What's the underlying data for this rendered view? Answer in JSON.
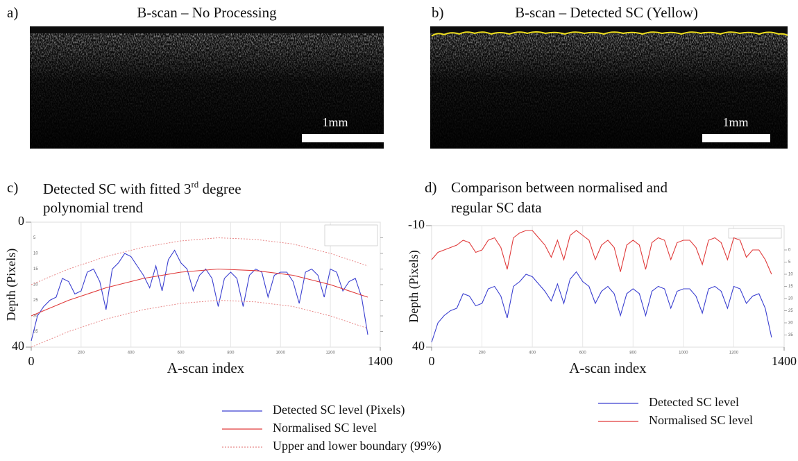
{
  "panels": [
    {
      "label": "a)",
      "title": "B-scan – No Processing",
      "scale_label": "1mm"
    },
    {
      "label": "b)",
      "title": "B-scan – Detected SC (Yellow)",
      "scale_label": "1mm"
    }
  ],
  "chart_data": [
    {
      "type": "line",
      "label": "c)",
      "title": "Detected SC with fitted 3",
      "title_sup": "rd",
      "title_rest": " degree",
      "title_line2": "polynomial  trend",
      "xlabel": "A-scan index",
      "ylabel": "Depth (Pixels)",
      "xlim": [
        0,
        1400
      ],
      "xticks": [
        0,
        1400
      ],
      "minor_xticks": [
        200,
        400,
        600,
        800,
        1000,
        1200
      ],
      "ylim": [
        0,
        40
      ],
      "yticks": [
        0,
        40
      ],
      "minor_yticks": [
        5,
        10,
        15,
        20,
        25,
        30,
        35
      ],
      "y_inverted": true,
      "grid": true,
      "x": [
        0,
        25,
        50,
        75,
        100,
        125,
        150,
        175,
        200,
        225,
        250,
        275,
        300,
        325,
        350,
        375,
        400,
        425,
        450,
        475,
        500,
        525,
        550,
        575,
        600,
        625,
        650,
        675,
        700,
        725,
        750,
        775,
        800,
        825,
        850,
        875,
        900,
        925,
        950,
        975,
        1000,
        1025,
        1050,
        1075,
        1100,
        1125,
        1150,
        1175,
        1200,
        1225,
        1250,
        1275,
        1300,
        1325,
        1350
      ],
      "series": [
        {
          "name": "Detected SC level (Pixels)",
          "color": "#3a3fd0",
          "style": "solid",
          "values": [
            38,
            30,
            27,
            25,
            24,
            18,
            19,
            23,
            22,
            16,
            15,
            19,
            28,
            15,
            13,
            10,
            11,
            14,
            17,
            21,
            14,
            22,
            12,
            9,
            13,
            15,
            22,
            17,
            15,
            18,
            27,
            18,
            16,
            18,
            27,
            17,
            15,
            16,
            24,
            17,
            16,
            16,
            19,
            26,
            16,
            15,
            17,
            24,
            15,
            16,
            22,
            19,
            18,
            24,
            36
          ]
        },
        {
          "name": "Normalised SC level",
          "color": "#e03a3a",
          "style": "solid",
          "x": [
            0,
            150,
            300,
            450,
            600,
            750,
            900,
            1050,
            1200,
            1350
          ],
          "values": [
            30,
            25,
            21,
            18,
            16,
            15,
            15.5,
            17,
            20,
            24
          ]
        },
        {
          "name": "Upper and lower boundary (99%)",
          "color": "#e88888",
          "style": "dotted",
          "x": [
            0,
            150,
            300,
            450,
            600,
            750,
            900,
            1050,
            1200,
            1350
          ],
          "values": [
            20,
            15,
            11,
            8,
            6,
            5,
            5.5,
            7,
            10,
            14
          ]
        },
        {
          "name": null,
          "color": "#e88888",
          "style": "dotted",
          "x": [
            0,
            150,
            300,
            450,
            600,
            750,
            900,
            1050,
            1200,
            1350
          ],
          "values": [
            40,
            35,
            31,
            28,
            26,
            25,
            25.5,
            27,
            30,
            34
          ]
        }
      ]
    },
    {
      "type": "line",
      "label": "d)",
      "title": "Comparison between normalised and",
      "title_line2": "regular SC data",
      "xlabel": "A-scan index",
      "ylabel": "Depth (Pixels)",
      "xlim": [
        0,
        1400
      ],
      "xticks": [
        0,
        1400
      ],
      "minor_xticks": [
        200,
        400,
        600,
        800,
        1000,
        1200
      ],
      "ylim": [
        -10,
        40
      ],
      "yticks": [
        -10,
        40
      ],
      "minor_yticks": [
        0,
        5,
        10,
        15,
        20,
        25,
        30,
        35
      ],
      "y_inverted": true,
      "grid": true,
      "x": [
        0,
        25,
        50,
        75,
        100,
        125,
        150,
        175,
        200,
        225,
        250,
        275,
        300,
        325,
        350,
        375,
        400,
        425,
        450,
        475,
        500,
        525,
        550,
        575,
        600,
        625,
        650,
        675,
        700,
        725,
        750,
        775,
        800,
        825,
        850,
        875,
        900,
        925,
        950,
        975,
        1000,
        1025,
        1050,
        1075,
        1100,
        1125,
        1150,
        1175,
        1200,
        1225,
        1250,
        1275,
        1300,
        1325,
        1350
      ],
      "series": [
        {
          "name": "Detected SC level",
          "color": "#3a3fd0",
          "style": "solid",
          "values": [
            38,
            30,
            27,
            25,
            24,
            18,
            19,
            23,
            22,
            16,
            15,
            19,
            28,
            15,
            13,
            10,
            11,
            14,
            17,
            21,
            14,
            22,
            12,
            9,
            13,
            15,
            22,
            17,
            15,
            18,
            27,
            18,
            16,
            18,
            27,
            17,
            15,
            16,
            24,
            17,
            16,
            16,
            19,
            26,
            16,
            15,
            17,
            24,
            15,
            16,
            22,
            19,
            18,
            24,
            36
          ]
        },
        {
          "name": "Normalised SC level",
          "color": "#e03a3a",
          "style": "solid",
          "values": [
            4,
            1,
            0,
            -1,
            -2,
            -4,
            -3,
            1,
            0,
            -4,
            -5,
            -1,
            8,
            -5,
            -7,
            -8,
            -8,
            -5,
            -2,
            3,
            -4,
            4,
            -6,
            -8,
            -6,
            -4,
            4,
            -2,
            -4,
            -1,
            9,
            -2,
            -4,
            -2,
            8,
            -3,
            -5,
            -4,
            4,
            -3,
            -4,
            -4,
            -1,
            6,
            -4,
            -5,
            -3,
            4,
            -5,
            -4,
            3,
            0,
            0,
            4,
            10
          ]
        }
      ]
    }
  ]
}
